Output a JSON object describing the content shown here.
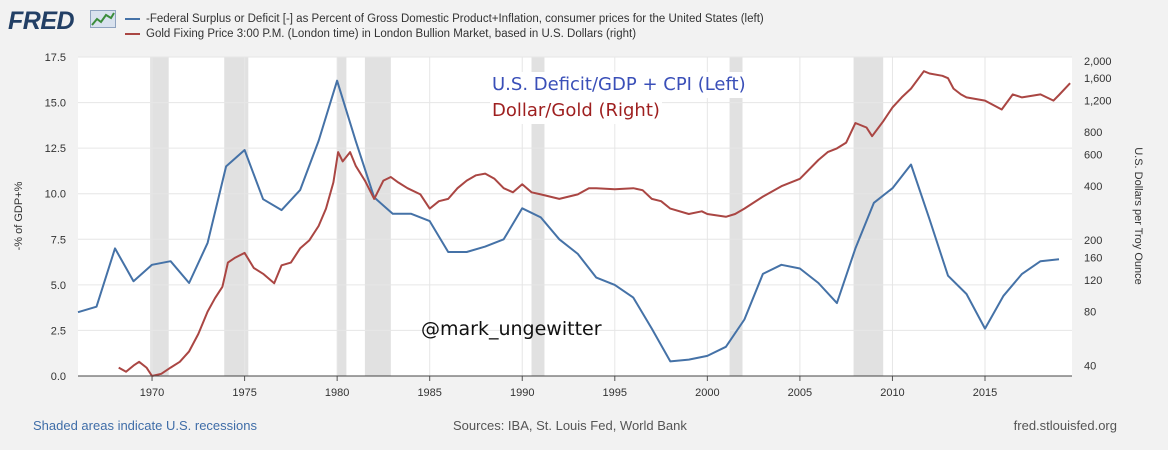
{
  "header": {
    "logo_text": "FRED",
    "legend": [
      {
        "label": "-Federal Surplus or Deficit [-] as Percent of Gross Domestic Product+Inflation, consumer prices for the United States (left)",
        "color": "#4572a7"
      },
      {
        "label": "Gold Fixing Price 3:00 P.M. (London time) in London Bullion Market, based in U.S. Dollars (right)",
        "color": "#aa4643"
      }
    ]
  },
  "annotations": {
    "line1": "U.S. Deficit/GDP + CPI (Left)",
    "line2": "Dollar/Gold (Right)",
    "handle": "@mark_ungewitter"
  },
  "footer": {
    "recession_note": "Shaded areas indicate U.S. recessions",
    "sources": "Sources: IBA, St. Louis Fed, World Bank",
    "link": "fred.stlouisfed.org"
  },
  "chart_data": {
    "type": "line",
    "ylabel_left": "-% of GDP+%",
    "ylabel_right": "U.S. Dollars per Troy Ounce",
    "xlim": [
      1966,
      2019.7
    ],
    "ylim_left": [
      0,
      17.5
    ],
    "ylim_right": [
      35,
      2100
    ],
    "right_scale": "log",
    "x_ticks": [
      1970,
      1975,
      1980,
      1985,
      1990,
      1995,
      2000,
      2005,
      2010,
      2015
    ],
    "left_ticks": [
      "0.0",
      "2.5",
      "5.0",
      "7.5",
      "10.0",
      "12.5",
      "15.0",
      "17.5"
    ],
    "right_ticks": [
      40,
      80,
      120,
      160,
      200,
      400,
      600,
      800,
      1200,
      1600,
      2000
    ],
    "grid": true,
    "recessions": [
      [
        1969.9,
        1970.9
      ],
      [
        1973.9,
        1975.2
      ],
      [
        1980.0,
        1980.5
      ],
      [
        1981.5,
        1982.9
      ],
      [
        1990.5,
        1991.2
      ],
      [
        2001.2,
        2001.9
      ],
      [
        2007.9,
        2009.5
      ]
    ],
    "series": [
      {
        "name": "-Federal Surplus or Deficit [-] as Percent of Gross Domestic Product+Inflation, consumer prices for the United States (left)",
        "color": "#4572a7",
        "x": [
          1966,
          1967,
          1968,
          1969,
          1970,
          1971,
          1972,
          1973,
          1974,
          1975,
          1976,
          1977,
          1978,
          1979,
          1980,
          1981,
          1982,
          1983,
          1984,
          1985,
          1986,
          1987,
          1988,
          1989,
          1990,
          1991,
          1992,
          1993,
          1994,
          1995,
          1996,
          1997,
          1998,
          1999,
          2000,
          2001,
          2002,
          2003,
          2004,
          2005,
          2006,
          2007,
          2008,
          2009,
          2010,
          2011,
          2012,
          2013,
          2014,
          2015,
          2016,
          2017,
          2018,
          2019
        ],
        "values": [
          3.5,
          3.8,
          7.0,
          5.2,
          6.1,
          6.3,
          5.1,
          7.3,
          11.5,
          12.4,
          9.7,
          9.1,
          10.2,
          12.9,
          16.2,
          12.9,
          9.8,
          8.9,
          8.9,
          8.5,
          6.8,
          6.8,
          7.1,
          7.5,
          9.2,
          8.7,
          7.5,
          6.7,
          5.4,
          5.0,
          4.3,
          2.6,
          0.8,
          0.9,
          1.1,
          1.6,
          3.1,
          5.6,
          6.1,
          5.9,
          5.1,
          4.0,
          7.0,
          9.5,
          10.3,
          11.6,
          8.6,
          5.5,
          4.5,
          2.6,
          4.4,
          5.6,
          6.3,
          6.4
        ]
      },
      {
        "name": "Gold Fixing Price 3:00 P.M. (London time) in London Bullion Market, based in U.S. Dollars (right)",
        "color": "#aa4643",
        "x": [
          1968.2,
          1968.6,
          1969.0,
          1969.3,
          1969.7,
          1970.0,
          1970.5,
          1971.0,
          1971.5,
          1972.0,
          1972.5,
          1973.0,
          1973.4,
          1973.8,
          1974.1,
          1974.5,
          1975.0,
          1975.5,
          1976.0,
          1976.6,
          1977.0,
          1977.5,
          1978.0,
          1978.5,
          1979.0,
          1979.4,
          1979.8,
          1980.05,
          1980.3,
          1980.7,
          1981.0,
          1981.5,
          1982.0,
          1982.5,
          1982.9,
          1983.3,
          1983.8,
          1984.5,
          1985.0,
          1985.5,
          1986.0,
          1986.5,
          1987.0,
          1987.5,
          1988.0,
          1988.5,
          1989.0,
          1989.5,
          1990.0,
          1990.5,
          1991.0,
          1992.0,
          1993.0,
          1993.6,
          1994.0,
          1995.0,
          1996.0,
          1996.5,
          1997.0,
          1997.5,
          1998.0,
          1999.0,
          1999.7,
          2000.0,
          2001.0,
          2001.5,
          2002.0,
          2003.0,
          2004.0,
          2005.0,
          2006.0,
          2006.5,
          2007.0,
          2007.5,
          2008.0,
          2008.6,
          2008.9,
          2009.5,
          2010.0,
          2010.5,
          2011.0,
          2011.7,
          2012.0,
          2012.7,
          2013.0,
          2013.3,
          2013.7,
          2014.0,
          2015.0,
          2015.9,
          2016.5,
          2017.0,
          2018.0,
          2018.7,
          2019.0,
          2019.6
        ],
        "values": [
          39,
          37,
          40,
          42,
          39,
          35,
          36,
          39,
          42,
          48,
          60,
          80,
          95,
          110,
          150,
          160,
          170,
          140,
          130,
          115,
          145,
          150,
          180,
          200,
          240,
          300,
          420,
          620,
          550,
          620,
          520,
          430,
          340,
          430,
          450,
          420,
          390,
          360,
          300,
          330,
          340,
          390,
          430,
          460,
          470,
          440,
          390,
          370,
          410,
          370,
          360,
          340,
          360,
          390,
          390,
          385,
          390,
          380,
          340,
          330,
          300,
          280,
          290,
          280,
          270,
          280,
          300,
          350,
          400,
          440,
          560,
          620,
          650,
          700,
          900,
          850,
          760,
          920,
          1100,
          1250,
          1400,
          1750,
          1700,
          1650,
          1600,
          1400,
          1300,
          1250,
          1200,
          1070,
          1300,
          1250,
          1300,
          1200,
          1290,
          1500
        ]
      }
    ]
  }
}
